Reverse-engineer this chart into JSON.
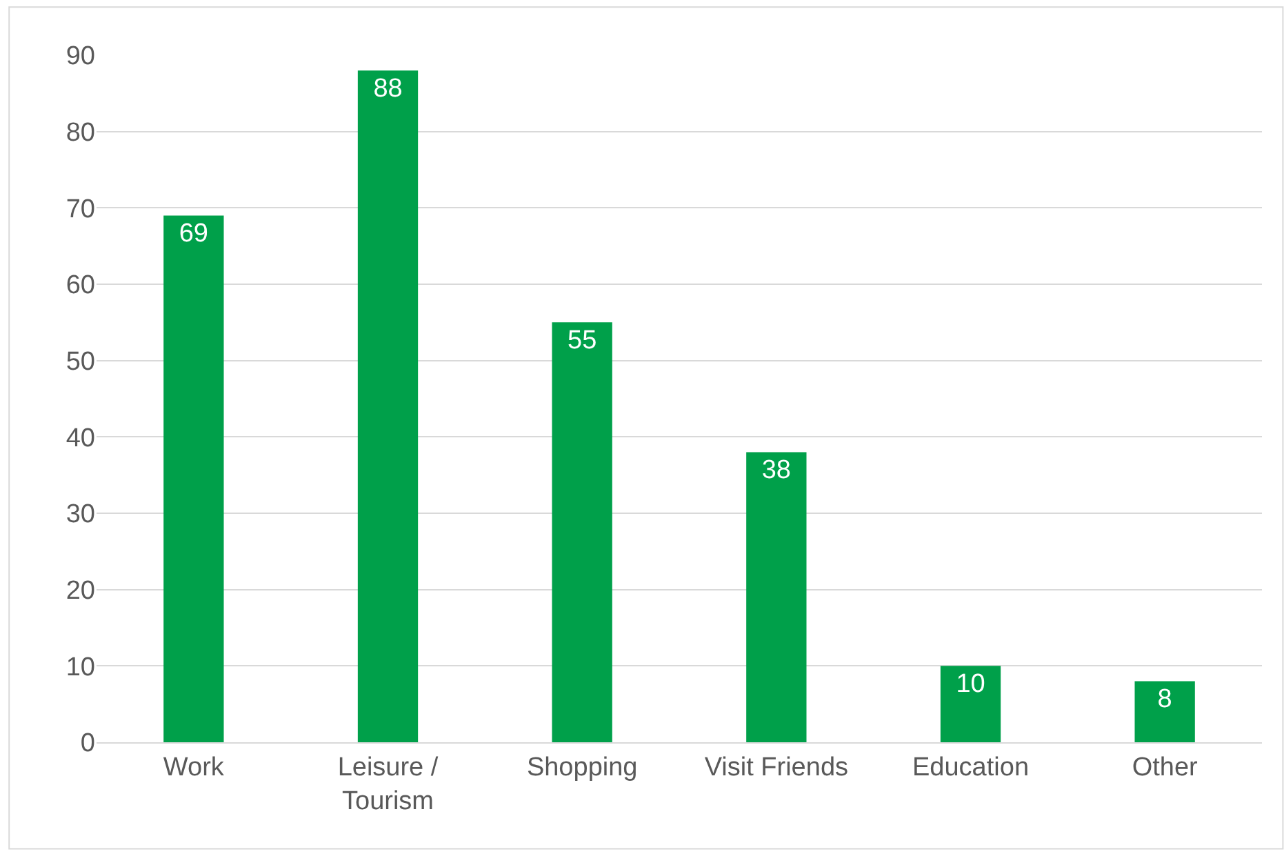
{
  "chart_data": {
    "type": "bar",
    "categories": [
      "Work",
      "Leisure / Tourism",
      "Shopping",
      "Visit Friends",
      "Education",
      "Other"
    ],
    "values": [
      69,
      88,
      55,
      38,
      10,
      8
    ],
    "color": "#00a04a",
    "ylim": [
      0,
      90
    ],
    "yticks": [
      0,
      10,
      20,
      30,
      40,
      50,
      60,
      70,
      80,
      90
    ],
    "grid": "y",
    "data_labels": true
  }
}
